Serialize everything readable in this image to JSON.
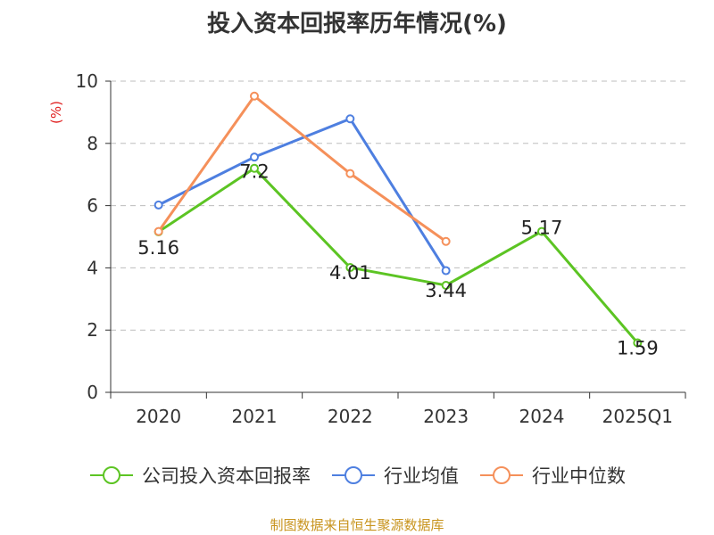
{
  "chart_data": {
    "type": "line",
    "title": "投入资本回报率历年情况(%)",
    "ylabel": "(%)",
    "xlabel": "",
    "categories": [
      "2020",
      "2021",
      "2022",
      "2023",
      "2024",
      "2025Q1"
    ],
    "ylim": [
      0,
      10
    ],
    "yticks": [
      0,
      2,
      4,
      6,
      8,
      10
    ],
    "grid": true,
    "legend_position": "bottom",
    "series": [
      {
        "name": "公司投入资本回报率",
        "color": "#5cc423",
        "values": [
          5.16,
          7.2,
          4.01,
          3.44,
          5.17,
          1.59
        ],
        "labels": [
          "5.16",
          "7.2",
          "4.01",
          "3.44",
          "5.17",
          "1.59"
        ]
      },
      {
        "name": "行业均值",
        "color": "#4e7fe0",
        "values": [
          6.02,
          7.56,
          8.79,
          3.91,
          null,
          null
        ]
      },
      {
        "name": "行业中位数",
        "color": "#f5905a",
        "values": [
          5.17,
          9.52,
          7.03,
          4.85,
          null,
          null
        ]
      }
    ]
  },
  "source": "制图数据来自恒生聚源数据库"
}
